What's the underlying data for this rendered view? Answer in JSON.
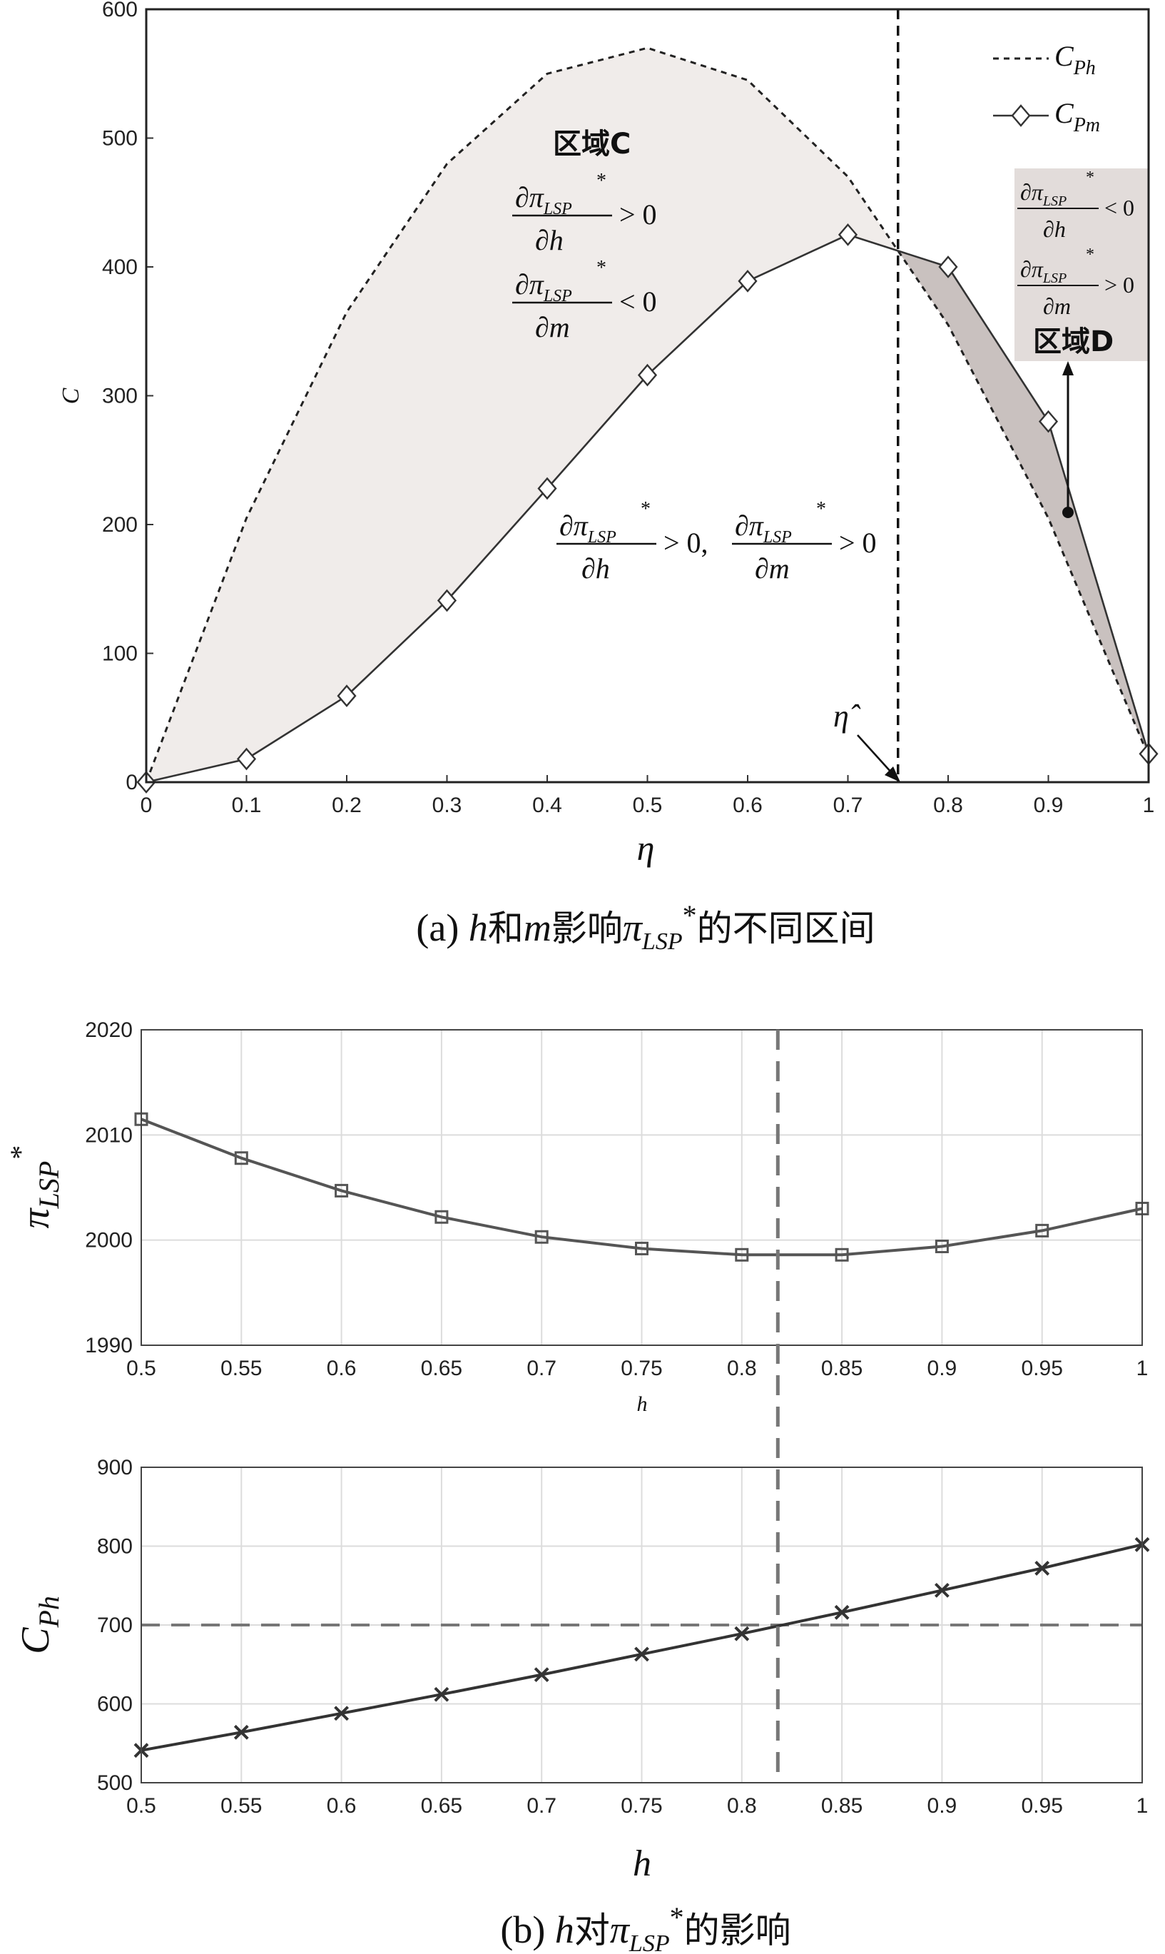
{
  "chart_data": [
    {
      "id": "a",
      "type": "line",
      "xlabel": "η",
      "ylabel": "C",
      "xlim": [
        0,
        1
      ],
      "ylim": [
        0,
        600
      ],
      "xticks": [
        "0",
        "0.1",
        "0.2",
        "0.3",
        "0.4",
        "0.5",
        "0.6",
        "0.7",
        "0.8",
        "0.9",
        "1"
      ],
      "yticks": [
        "0",
        "100",
        "200",
        "300",
        "400",
        "500",
        "600"
      ],
      "x": [
        0,
        0.1,
        0.2,
        0.3,
        0.4,
        0.5,
        0.6,
        0.7,
        0.8,
        0.9,
        1
      ],
      "series": [
        {
          "name": "C_Ph",
          "style": "dashed",
          "values": [
            0,
            205,
            365,
            480,
            550,
            570,
            545,
            470,
            355,
            205,
            20
          ]
        },
        {
          "name": "C_Pm",
          "style": "solid-diamond",
          "values": [
            0,
            18,
            67,
            141,
            228,
            316,
            389,
            425,
            400,
            280,
            22
          ]
        }
      ],
      "vline": {
        "x": 0.75,
        "label": "η̂"
      },
      "legend": {
        "placement": "top-right",
        "entries": [
          "C",
          "Ph",
          "C",
          "Pm"
        ]
      },
      "annotations": {
        "region_c_title": "区域C",
        "region_c_dh": "∂π",
        "region_c_dh_sub": "LSP",
        "region_c_dh_den": "∂h",
        "region_c_dh_sign": "> 0",
        "region_c_dm": "∂π",
        "region_c_dm_sub": "LSP",
        "region_c_dm_den": "∂m",
        "region_c_dm_sign": "< 0",
        "region_both_dh": "∂π",
        "region_both_sub": "LSP",
        "region_both_dh_den": "∂h",
        "region_both_dh_sign": "> 0,",
        "region_both_dm": "∂π",
        "region_both_dm_den": "∂m",
        "region_both_dm_sign": "> 0",
        "region_d_title": "区域D",
        "region_d_dh": "∂π",
        "region_d_sub": "LSP",
        "region_d_dh_den": "∂h",
        "region_d_dh_sign": "< 0",
        "region_d_dm": "∂π",
        "region_d_dm_den": "∂m",
        "region_d_dm_sign": "> 0",
        "star": "*"
      },
      "caption": {
        "pre": "(a) ",
        "h": "h",
        "mid1": "和",
        "m": "m",
        "mid2": "影响",
        "pi": "π",
        "sub": "LSP",
        "star": "*",
        "post": "的不同区间"
      },
      "colors": {
        "region_c_fill": "#f0ecea",
        "region_d_fill": "#c9c1bf",
        "region_d_box": "#e2dcda",
        "line": "#222222"
      }
    },
    {
      "id": "b1",
      "type": "line",
      "xlabel": "h",
      "ylabel": "π_LSP*",
      "ylabel_parts": {
        "main": "π",
        "sub": "LSP",
        "sup": "*"
      },
      "xlim": [
        0.5,
        1
      ],
      "ylim": [
        1990,
        2020
      ],
      "xticks": [
        "0.5",
        "0.55",
        "0.6",
        "0.65",
        "0.7",
        "0.75",
        "0.8",
        "0.85",
        "0.9",
        "0.95",
        "1"
      ],
      "yticks": [
        "1990",
        "2000",
        "2010",
        "2020"
      ],
      "x": [
        0.5,
        0.55,
        0.6,
        0.65,
        0.7,
        0.75,
        0.8,
        0.85,
        0.9,
        0.95,
        1
      ],
      "series": [
        {
          "marker": "square",
          "values": [
            2011.5,
            2007.8,
            2004.7,
            2002.2,
            2000.3,
            1999.2,
            1998.6,
            1998.6,
            1999.4,
            2000.9,
            2003
          ]
        }
      ],
      "vline": {
        "x": 0.818
      },
      "hline_min": 1998.6,
      "colors": {
        "line": "#555555",
        "guide": "#777777"
      }
    },
    {
      "id": "b2",
      "type": "line",
      "xlabel": "h",
      "ylabel": "C_Ph",
      "ylabel_parts": {
        "main": "C",
        "sub": "Ph"
      },
      "xlim": [
        0.5,
        1
      ],
      "ylim": [
        500,
        900
      ],
      "xticks": [
        "0.5",
        "0.55",
        "0.6",
        "0.65",
        "0.7",
        "0.75",
        "0.8",
        "0.85",
        "0.9",
        "0.95",
        "1"
      ],
      "yticks": [
        "500",
        "600",
        "700",
        "800",
        "900"
      ],
      "x": [
        0.5,
        0.55,
        0.6,
        0.65,
        0.7,
        0.75,
        0.8,
        0.85,
        0.9,
        0.95,
        1
      ],
      "series": [
        {
          "marker": "x",
          "values": [
            541,
            564,
            588,
            612,
            637,
            663,
            689,
            716,
            744,
            772,
            802
          ]
        }
      ],
      "vline": {
        "x": 0.818
      },
      "hline": {
        "y": 700
      },
      "caption": {
        "pre": "(b) ",
        "h": "h",
        "mid": "对",
        "pi": "π",
        "sub": "LSP",
        "star": "*",
        "post": "的影响"
      },
      "colors": {
        "line": "#333333",
        "guide": "#777777"
      }
    }
  ]
}
